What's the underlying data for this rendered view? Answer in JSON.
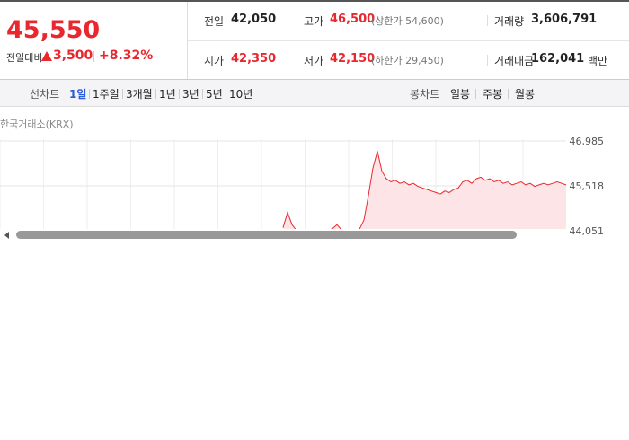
{
  "price": {
    "current": "45,550",
    "change_label": "전일대비",
    "change": "3,500",
    "rate": "+8.32%"
  },
  "stats": [
    [
      {
        "label": "전일",
        "value": "42,050"
      },
      {
        "label": "고가",
        "value": "46,500",
        "extra": "(상한가 54,600)"
      },
      {
        "label": "거래량",
        "value": "3,606,791"
      }
    ],
    [
      {
        "label": "시가",
        "value": "42,350"
      },
      {
        "label": "저가",
        "value": "42,150",
        "extra": "(하한가 29,450)"
      },
      {
        "label": "거래대금",
        "value": "162,041",
        "unit": "백만"
      }
    ]
  ],
  "tabs": {
    "line_label": "선차트",
    "line": [
      "1일",
      "1주일",
      "3개월",
      "1년",
      "3년",
      "5년",
      "10년"
    ],
    "candle_label": "봉차트",
    "candle": [
      "일봉",
      "주봉",
      "월봉"
    ]
  },
  "chart_data": {
    "type": "line",
    "source": "한국거래소(KRX)",
    "color": "#e8282e",
    "ylim": [
      44051,
      46985
    ],
    "yticks": [
      {
        "value": 46985,
        "label": "46,985"
      },
      {
        "value": 45518,
        "label": "45,518"
      },
      {
        "value": 44051,
        "label": "44,051"
      }
    ],
    "values": [
      44150,
      44650,
      44250,
      44060,
      44060,
      44060,
      44060,
      44060,
      44060,
      44060,
      44060,
      44120,
      44250,
      44080,
      44070,
      44070,
      44080,
      44100,
      44400,
      45200,
      46100,
      46650,
      46000,
      45750,
      45650,
      45700,
      45600,
      45650,
      45550,
      45600,
      45500,
      45450,
      45400,
      45350,
      45300,
      45250,
      45350,
      45300,
      45400,
      45450,
      45650,
      45700,
      45600,
      45750,
      45800,
      45700,
      45750,
      45650,
      45700,
      45600,
      45650,
      45550,
      45600,
      45650,
      45550,
      45600,
      45500,
      45550,
      45600,
      45550,
      45600,
      45650,
      45600,
      45550
    ]
  }
}
